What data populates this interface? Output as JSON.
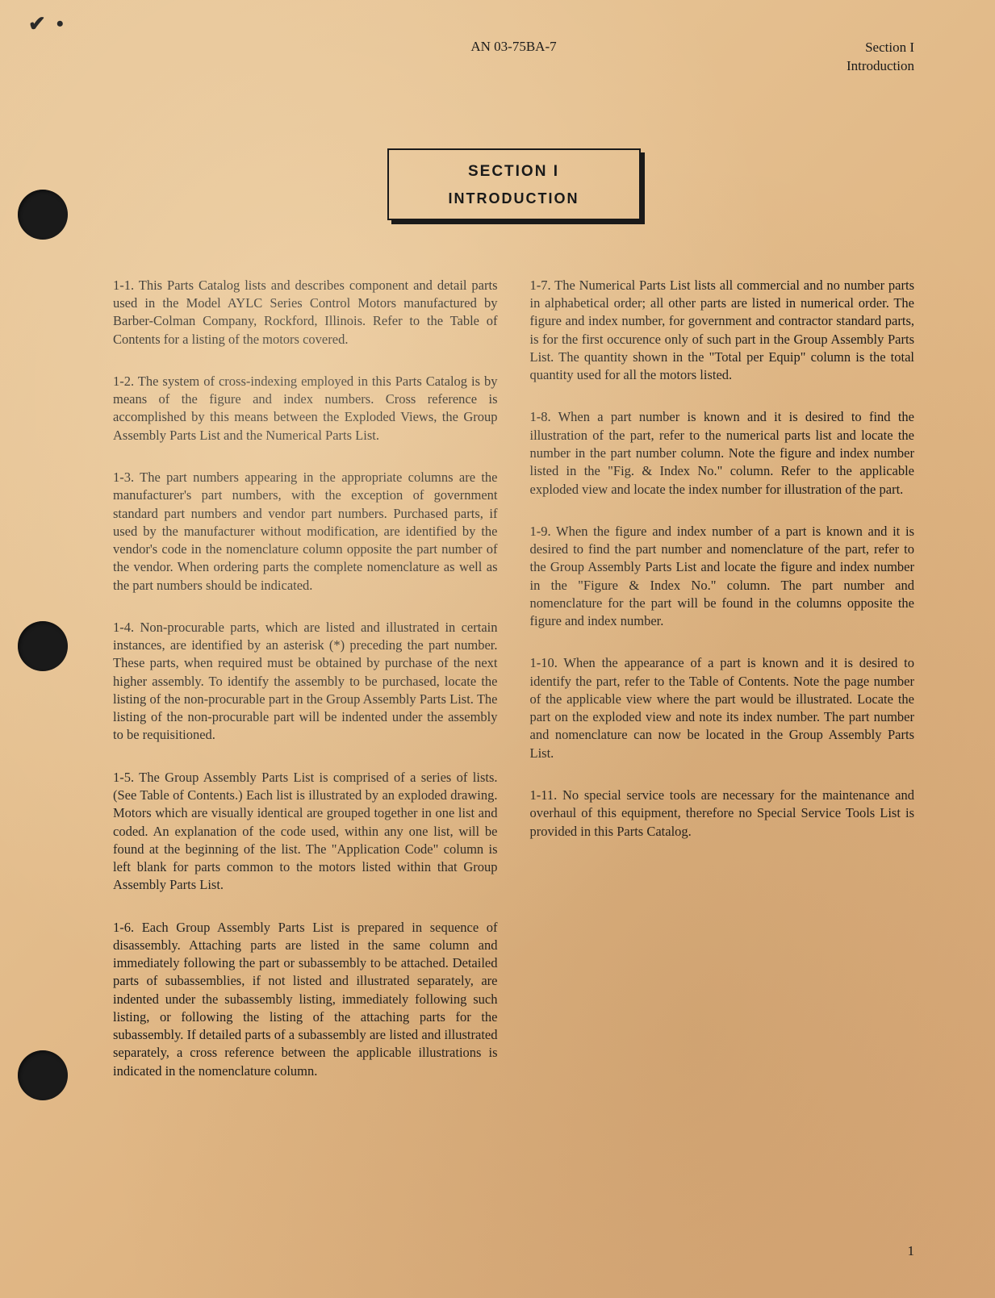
{
  "header": {
    "doc_id": "AN 03-75BA-7",
    "section_line1": "Section I",
    "section_line2": "Introduction"
  },
  "section_box": {
    "title": "SECTION  I",
    "subtitle": "INTRODUCTION"
  },
  "paragraphs": [
    "1-1. This Parts Catalog lists and describes component and detail parts used in the Model AYLC Series Control Motors manufactured by Barber-Colman Company, Rockford, Illinois. Refer to the Table of Contents for a listing of the motors covered.",
    "1-2. The system of cross-indexing employed in this Parts Catalog is by means of the figure and index numbers. Cross reference is accomplished by this means between the Exploded Views, the Group Assembly Parts List and the Numerical Parts List.",
    "1-3. The part numbers appearing in the appropriate columns are the manufacturer's part numbers, with the exception of government standard part numbers and vendor part numbers. Purchased parts, if used by the manufacturer without modification, are identified by the vendor's code in the nomenclature column opposite the part number of the vendor. When ordering parts the complete nomenclature as well as the part numbers should be indicated.",
    "1-4. Non-procurable parts, which are listed and illustrated in certain instances, are identified by an asterisk (*) preceding the part number. These parts, when required must be obtained by purchase of the next higher assembly. To identify the assembly to be purchased, locate the listing of the non-procurable part in the Group Assembly Parts List. The listing of the non-procurable part will be indented under the assembly to be requisitioned.",
    "1-5. The Group Assembly Parts List is comprised of a series of lists. (See Table of Contents.) Each list is illustrated by an exploded drawing. Motors which are visually identical are grouped together in one list and coded. An explanation of the code used, within any one list, will be found at the beginning of the list. The \"Application Code\" column is left blank for parts common to the motors listed within that Group Assembly Parts List.",
    "1-6. Each Group Assembly Parts List is prepared in sequence of disassembly. Attaching parts are listed in the same column and immediately following the part or subassembly to be attached. Detailed parts of subassemblies, if not listed and illustrated separately, are indented under the subassembly listing, immediately following such listing, or following the listing of the attaching parts for the subassembly. If detailed parts of a subassembly are listed and illustrated separately, a cross reference between the applicable illustrations is indicated in the nomenclature column.",
    "1-7. The Numerical Parts List lists all commercial and no number parts in alphabetical order; all other parts are listed in numerical order. The figure and index number, for government and contractor standard parts, is for the first occurence only of such part in the Group Assembly Parts List. The quantity shown in the \"Total per Equip\" column is the total quantity used for all the motors listed.",
    "1-8. When a part number is known and it is desired to find the illustration of the part, refer to the numerical parts list and locate the number in the part number column. Note the figure and index number listed in the \"Fig. & Index No.\" column. Refer to the applicable exploded view and locate the index number for illustration of the part.",
    "1-9. When the figure and index number of a part is known and it is desired to find the part number and nomenclature of the part, refer to the Group Assembly Parts List and locate the figure and index number in the \"Figure & Index No.\" column. The part number and nomenclature for the part will be found in the columns opposite the figure and index number.",
    "1-10. When the appearance of a part is known and it is desired to identify the part, refer to the Table of Contents. Note the page number of the applicable view where the part would be illustrated. Locate the part on the exploded view and note its index number. The part number and nomenclature can now be located in the Group Assembly Parts List.",
    "1-11. No special service tools are necessary for the maintenance and overhaul of this equipment, therefore no Special Service Tools List is provided in this Parts Catalog."
  ],
  "page_number": "1",
  "colors": {
    "text": "#1a1a1a",
    "paper_light": "#e8c79a",
    "paper_dark": "#d8a878"
  }
}
